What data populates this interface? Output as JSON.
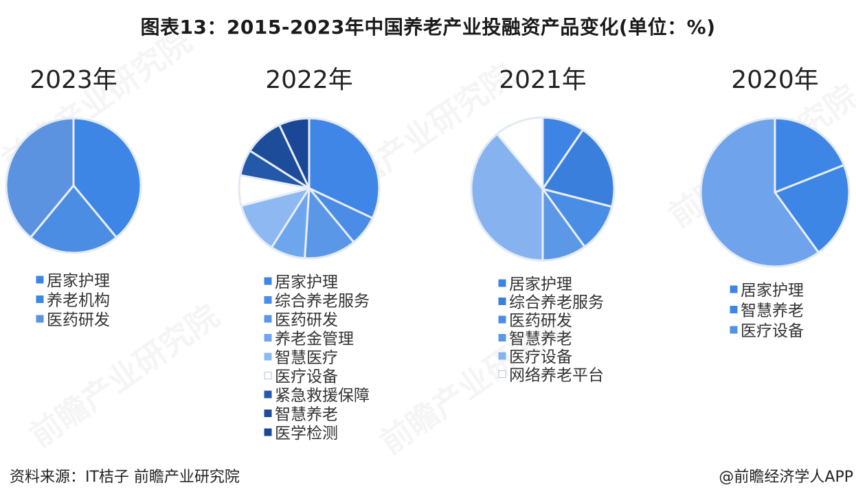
{
  "title": "图表13：2015-2023年中国养老产业投融资产品变化(单位：%)",
  "source": "资料来源：IT桔子 前瞻产业研究院",
  "credit": "@前瞻经济学人APP",
  "watermark": "前瞻产业研究院",
  "chart_data": [
    {
      "type": "pie",
      "title": "2023年",
      "categories": [
        "居家护理",
        "养老机构",
        "医药研发"
      ],
      "values": [
        39,
        22,
        39
      ],
      "colors": [
        "#3d86e6",
        "#4a8de2",
        "#5b93e0"
      ],
      "legend_colors": [
        "#3d86e6",
        "#3d86e6",
        "#5b93e0"
      ]
    },
    {
      "type": "pie",
      "title": "2022年",
      "categories": [
        "居家护理",
        "综合养老服务",
        "医药研发",
        "养老金管理",
        "智慧医疗",
        "医疗设备",
        "紧急救援保障",
        "智慧养老",
        "医学检测"
      ],
      "values": [
        32,
        7,
        12,
        8,
        12,
        7,
        6,
        9,
        7
      ],
      "colors": [
        "#3f86e6",
        "#4b8ce6",
        "#5a97e6",
        "#6ea6ee",
        "#8db8f2",
        "#ffffff",
        "#2458a8",
        "#1d4c9a",
        "#1a4796"
      ],
      "legend_colors": [
        "#3f86e6",
        "#4b8ce6",
        "#5a97e6",
        "#6ea6ee",
        "#8db8f2",
        "#ffffff",
        "#2458a8",
        "#1d4c9a",
        "#1a4796"
      ]
    },
    {
      "type": "pie",
      "title": "2021年",
      "categories": [
        "居家护理",
        "综合养老服务",
        "医药研发",
        "智慧养老",
        "医疗设备",
        "网络养老平台"
      ],
      "values": [
        9.5,
        19.5,
        11,
        10,
        39,
        11
      ],
      "colors": [
        "#3d84e4",
        "#3b7fdc",
        "#4a8de4",
        "#5c98e6",
        "#86b2ef",
        "#ffffff"
      ],
      "legend_colors": [
        "#3d84e4",
        "#3b7fdc",
        "#4a8de4",
        "#5c98e6",
        "#86b2ef",
        "#ffffff"
      ]
    },
    {
      "type": "pie",
      "title": "2020年",
      "categories": [
        "居家护理",
        "智慧养老",
        "医疗设备"
      ],
      "values": [
        19,
        21,
        60
      ],
      "colors": [
        "#3d86e6",
        "#3d86e6",
        "#6fa3ec"
      ],
      "slice_order": [
        0,
        1,
        2
      ],
      "legend_colors": [
        "#3d86e6",
        "#3d86e6",
        "#4f92e6"
      ]
    }
  ]
}
